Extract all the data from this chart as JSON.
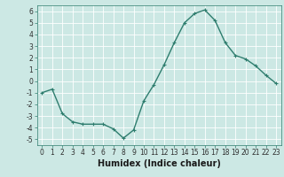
{
  "x": [
    0,
    1,
    2,
    3,
    4,
    5,
    6,
    7,
    8,
    9,
    10,
    11,
    12,
    13,
    14,
    15,
    16,
    17,
    18,
    19,
    20,
    21,
    22,
    23
  ],
  "y": [
    -1.0,
    -0.7,
    -2.8,
    -3.5,
    -3.7,
    -3.7,
    -3.7,
    -4.1,
    -4.9,
    -4.2,
    -1.7,
    -0.3,
    1.4,
    3.3,
    5.0,
    5.8,
    6.1,
    5.2,
    3.3,
    2.2,
    1.9,
    1.3,
    0.5,
    -0.2
  ],
  "line_color": "#2e7d6e",
  "marker": "+",
  "marker_size": 3,
  "bg_color": "#cce8e4",
  "grid_color": "#ffffff",
  "xlabel": "Humidex (Indice chaleur)",
  "xlim": [
    -0.5,
    23.5
  ],
  "ylim": [
    -5.5,
    6.5
  ],
  "yticks": [
    -5,
    -4,
    -3,
    -2,
    -1,
    0,
    1,
    2,
    3,
    4,
    5,
    6
  ],
  "xticks": [
    0,
    1,
    2,
    3,
    4,
    5,
    6,
    7,
    8,
    9,
    10,
    11,
    12,
    13,
    14,
    15,
    16,
    17,
    18,
    19,
    20,
    21,
    22,
    23
  ],
  "tick_labelsize": 5.5,
  "xlabel_fontsize": 7.0,
  "line_width": 1.0,
  "spine_color": "#2e7d6e",
  "tick_color": "#2e2e2e"
}
